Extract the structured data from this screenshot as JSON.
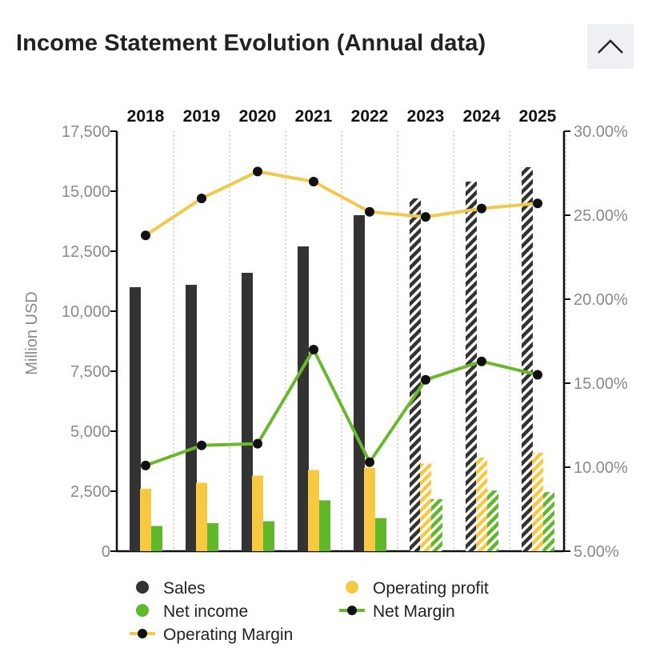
{
  "header": {
    "title": "Income Statement Evolution (Annual data)",
    "collapse_icon": "chevron-up-icon"
  },
  "chart_data": {
    "type": "bar",
    "title": "Income Statement Evolution (Annual data)",
    "categories": [
      "2018",
      "2019",
      "2020",
      "2021",
      "2022",
      "2023",
      "2024",
      "2025"
    ],
    "forecast_from_index": 5,
    "ylabel": "Million USD",
    "ylim": [
      0,
      17500
    ],
    "y_ticks": [
      0,
      2500,
      5000,
      7500,
      10000,
      12500,
      15000,
      17500
    ],
    "y_tick_labels": [
      "0",
      "2,500",
      "5,000",
      "7,500",
      "10,000",
      "12,500",
      "15,000",
      "17,500"
    ],
    "y2lim": [
      5,
      30
    ],
    "y2_ticks": [
      5,
      10,
      15,
      20,
      25,
      30
    ],
    "y2_tick_labels": [
      "5.00%",
      "10.00%",
      "15.00%",
      "20.00%",
      "25.00%",
      "30.00%"
    ],
    "grid": "vertical dotted",
    "legend_position": "bottom",
    "series": [
      {
        "name": "Sales",
        "kind": "bar",
        "axis": "left",
        "color": "#333333",
        "values": [
          11000,
          11100,
          11600,
          12700,
          14000,
          14700,
          15400,
          16000
        ]
      },
      {
        "name": "Operating profit",
        "kind": "bar",
        "axis": "left",
        "color": "#f7c940",
        "values": [
          2600,
          2850,
          3150,
          3380,
          3480,
          3650,
          3900,
          4100
        ]
      },
      {
        "name": "Net income",
        "kind": "bar",
        "axis": "left",
        "color": "#5fb82a",
        "values": [
          1050,
          1170,
          1250,
          2120,
          1380,
          2170,
          2530,
          2460
        ]
      },
      {
        "name": "Net Margin",
        "kind": "line",
        "axis": "right",
        "color": "#6bb82e",
        "values": [
          10.1,
          11.3,
          11.4,
          17.0,
          10.3,
          15.2,
          16.3,
          15.5
        ]
      },
      {
        "name": "Operating Margin",
        "kind": "line",
        "axis": "right",
        "color": "#f0c94a",
        "values": [
          23.8,
          26.0,
          27.6,
          27.0,
          25.2,
          24.9,
          25.4,
          25.7
        ]
      }
    ],
    "legend": [
      {
        "label": "Sales",
        "marker": "dot",
        "color": "#333333"
      },
      {
        "label": "Operating profit",
        "marker": "dot",
        "color": "#f7c940"
      },
      {
        "label": "Net income",
        "marker": "dot",
        "color": "#5fb82a"
      },
      {
        "label": "Net Margin",
        "marker": "line-dot",
        "color": "#6bb82e"
      },
      {
        "label": "Operating Margin",
        "marker": "line-dot",
        "color": "#f0c94a"
      }
    ]
  }
}
